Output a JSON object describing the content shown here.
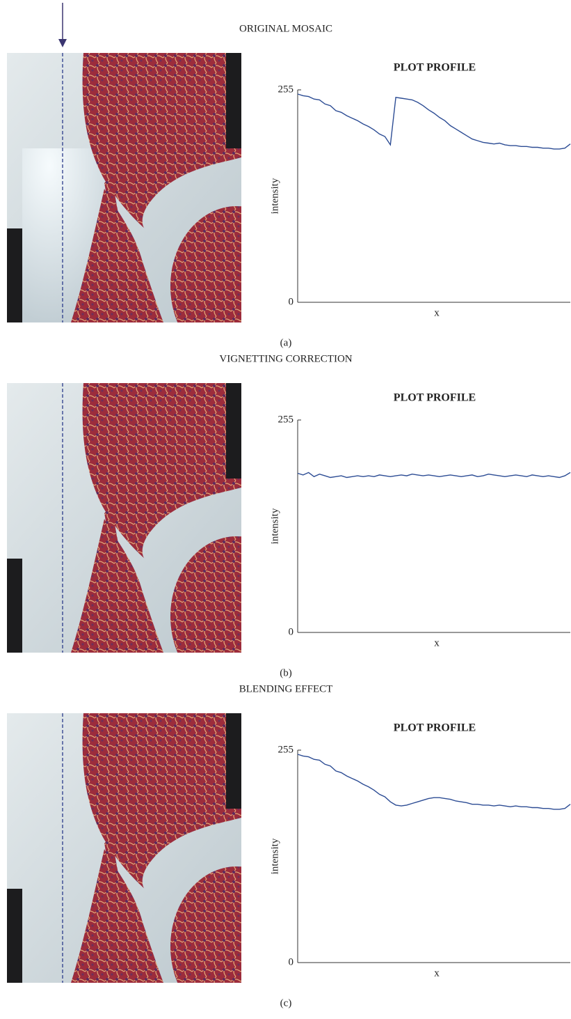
{
  "panels": [
    {
      "title": "ORIGINAL MOSAIC",
      "caption": "(a)"
    },
    {
      "title": "VIGNETTING CORRECTION",
      "caption": "(b)"
    },
    {
      "title": "BLENDING EFFECT",
      "caption": "(c)"
    }
  ],
  "chart_data": [
    {
      "type": "line",
      "title": "PLOT PROFILE",
      "xlabel": "x",
      "ylabel": "intensity",
      "color": "#2c4c94",
      "x": [
        0,
        1,
        2,
        3,
        4,
        5,
        6,
        7,
        8,
        9,
        10,
        11,
        12,
        13,
        14,
        15,
        16,
        17,
        18,
        19,
        20,
        21,
        22,
        23,
        24,
        25,
        26,
        27,
        28,
        29,
        30,
        31,
        32,
        33,
        34,
        35,
        36,
        37,
        38,
        39,
        40,
        41,
        42,
        43,
        44,
        45,
        46,
        47,
        48,
        49,
        50
      ],
      "values": [
        250,
        248,
        247,
        244,
        243,
        238,
        236,
        230,
        228,
        224,
        221,
        218,
        214,
        211,
        207,
        202,
        199,
        189,
        246,
        245,
        244,
        243,
        240,
        236,
        231,
        227,
        222,
        218,
        212,
        208,
        204,
        200,
        196,
        194,
        192,
        191,
        190,
        191,
        189,
        188,
        188,
        187,
        187,
        186,
        186,
        185,
        185,
        184,
        184,
        185,
        190
      ],
      "xlim": [
        0,
        50
      ],
      "ylim": [
        0,
        255
      ],
      "yticks": [
        0,
        255
      ]
    },
    {
      "type": "line",
      "title": "PLOT PROFILE",
      "xlabel": "x",
      "ylabel": "intensity",
      "color": "#2c4c94",
      "x": [
        0,
        1,
        2,
        3,
        4,
        5,
        6,
        7,
        8,
        9,
        10,
        11,
        12,
        13,
        14,
        15,
        16,
        17,
        18,
        19,
        20,
        21,
        22,
        23,
        24,
        25,
        26,
        27,
        28,
        29,
        30,
        31,
        32,
        33,
        34,
        35,
        36,
        37,
        38,
        39,
        40,
        41,
        42,
        43,
        44,
        45,
        46,
        47,
        48,
        49,
        50
      ],
      "values": [
        191,
        189,
        192,
        187,
        190,
        188,
        186,
        187,
        188,
        186,
        187,
        188,
        187,
        188,
        187,
        189,
        188,
        187,
        188,
        189,
        188,
        190,
        189,
        188,
        189,
        188,
        187,
        188,
        189,
        188,
        187,
        188,
        189,
        187,
        188,
        190,
        189,
        188,
        187,
        188,
        189,
        188,
        187,
        189,
        188,
        187,
        188,
        187,
        186,
        188,
        192
      ],
      "xlim": [
        0,
        50
      ],
      "ylim": [
        0,
        255
      ],
      "yticks": [
        0,
        255
      ]
    },
    {
      "type": "line",
      "title": "PLOT PROFILE",
      "xlabel": "x",
      "ylabel": "intensity",
      "color": "#2c4c94",
      "x": [
        0,
        1,
        2,
        3,
        4,
        5,
        6,
        7,
        8,
        9,
        10,
        11,
        12,
        13,
        14,
        15,
        16,
        17,
        18,
        19,
        20,
        21,
        22,
        23,
        24,
        25,
        26,
        27,
        28,
        29,
        30,
        31,
        32,
        33,
        34,
        35,
        36,
        37,
        38,
        39,
        40,
        41,
        42,
        43,
        44,
        45,
        46,
        47,
        48,
        49,
        50
      ],
      "values": [
        250,
        248,
        247,
        244,
        243,
        238,
        236,
        230,
        228,
        224,
        221,
        218,
        214,
        211,
        207,
        202,
        199,
        193,
        189,
        188,
        189,
        191,
        193,
        195,
        197,
        198,
        198,
        197,
        196,
        194,
        193,
        192,
        190,
        190,
        189,
        189,
        188,
        189,
        188,
        187,
        188,
        187,
        187,
        186,
        186,
        185,
        185,
        184,
        184,
        185,
        190
      ],
      "xlim": [
        0,
        50
      ],
      "ylim": [
        0,
        255
      ],
      "yticks": [
        0,
        255
      ]
    }
  ]
}
